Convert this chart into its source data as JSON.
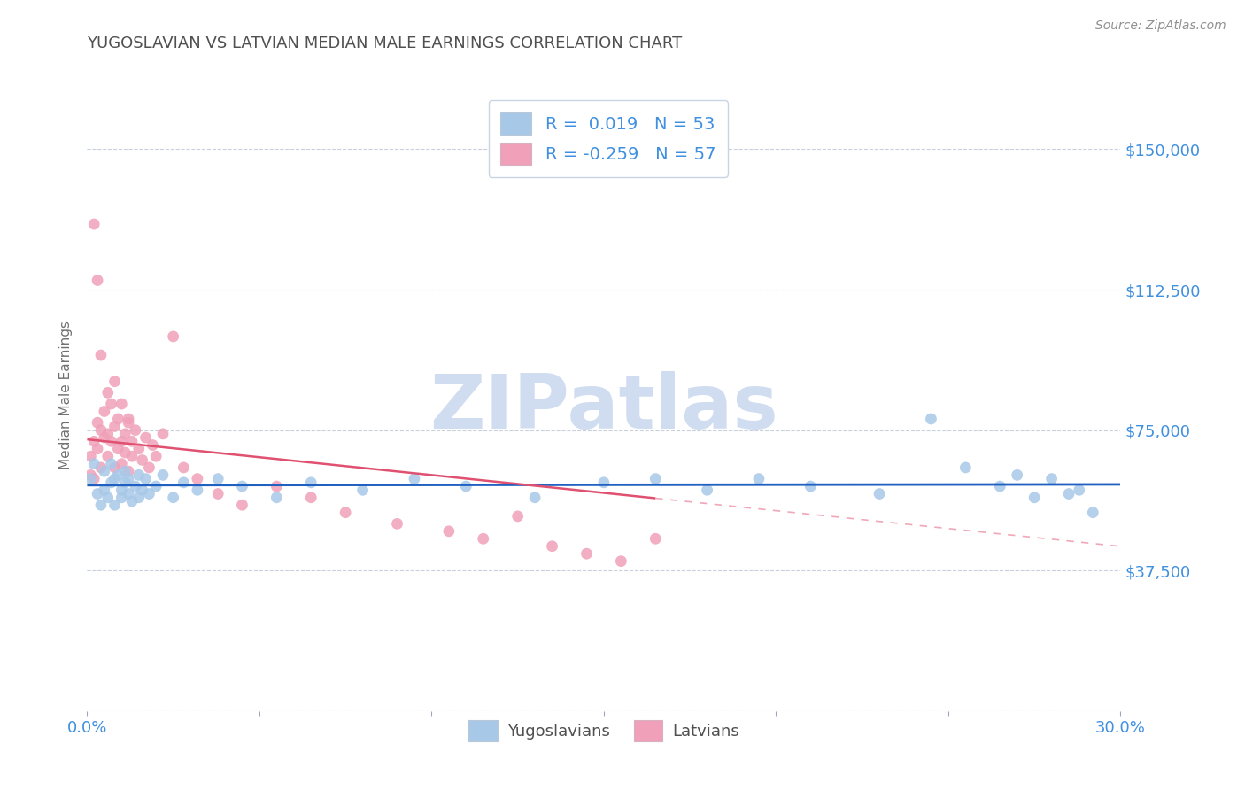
{
  "title": "YUGOSLAVIAN VS LATVIAN MEDIAN MALE EARNINGS CORRELATION CHART",
  "source": "Source: ZipAtlas.com",
  "ylabel": "Median Male Earnings",
  "xlim": [
    0.0,
    0.3
  ],
  "ylim": [
    0,
    168750
  ],
  "yticks": [
    0,
    37500,
    75000,
    112500,
    150000
  ],
  "ytick_labels": [
    "",
    "$37,500",
    "$75,000",
    "$112,500",
    "$150,000"
  ],
  "xticks": [
    0.0,
    0.05,
    0.1,
    0.15,
    0.2,
    0.25,
    0.3
  ],
  "yugo_R": 0.019,
  "yugo_N": 53,
  "latv_R": -0.259,
  "latv_N": 57,
  "yugo_color": "#a8c8e8",
  "latv_color": "#f0a0b8",
  "yugo_line_color": "#2060c0",
  "latv_line_color": "#e05070",
  "latv_dash_color": "#f0a8b8",
  "background_color": "#ffffff",
  "grid_color": "#c8d0dc",
  "title_color": "#505050",
  "axis_label_color": "#4090e0",
  "watermark_color": "#d0ddf0",
  "yugo_x": [
    0.001,
    0.002,
    0.003,
    0.004,
    0.005,
    0.005,
    0.006,
    0.007,
    0.007,
    0.008,
    0.008,
    0.009,
    0.01,
    0.01,
    0.011,
    0.011,
    0.012,
    0.012,
    0.013,
    0.014,
    0.015,
    0.015,
    0.016,
    0.017,
    0.018,
    0.02,
    0.022,
    0.025,
    0.028,
    0.032,
    0.038,
    0.045,
    0.055,
    0.065,
    0.08,
    0.095,
    0.11,
    0.13,
    0.15,
    0.165,
    0.18,
    0.195,
    0.21,
    0.23,
    0.245,
    0.255,
    0.265,
    0.27,
    0.275,
    0.28,
    0.285,
    0.288,
    0.292
  ],
  "yugo_y": [
    62000,
    66000,
    58000,
    55000,
    59000,
    64000,
    57000,
    61000,
    66000,
    62000,
    55000,
    63000,
    59000,
    57000,
    61000,
    64000,
    58000,
    62000,
    56000,
    60000,
    63000,
    57000,
    59000,
    62000,
    58000,
    60000,
    63000,
    57000,
    61000,
    59000,
    62000,
    60000,
    57000,
    61000,
    59000,
    62000,
    60000,
    57000,
    61000,
    62000,
    59000,
    62000,
    60000,
    58000,
    78000,
    65000,
    60000,
    63000,
    57000,
    62000,
    58000,
    59000,
    53000
  ],
  "latv_x": [
    0.001,
    0.001,
    0.002,
    0.002,
    0.003,
    0.003,
    0.004,
    0.004,
    0.005,
    0.005,
    0.006,
    0.006,
    0.007,
    0.007,
    0.008,
    0.008,
    0.009,
    0.009,
    0.01,
    0.01,
    0.011,
    0.011,
    0.012,
    0.012,
    0.013,
    0.013,
    0.014,
    0.015,
    0.016,
    0.017,
    0.018,
    0.019,
    0.02,
    0.022,
    0.025,
    0.028,
    0.032,
    0.038,
    0.045,
    0.055,
    0.065,
    0.075,
    0.09,
    0.105,
    0.115,
    0.125,
    0.135,
    0.145,
    0.155,
    0.165,
    0.002,
    0.003,
    0.004,
    0.006,
    0.008,
    0.01,
    0.012
  ],
  "latv_y": [
    63000,
    68000,
    62000,
    72000,
    70000,
    77000,
    75000,
    65000,
    73000,
    80000,
    68000,
    74000,
    82000,
    72000,
    76000,
    65000,
    70000,
    78000,
    72000,
    66000,
    74000,
    69000,
    77000,
    64000,
    72000,
    68000,
    75000,
    70000,
    67000,
    73000,
    65000,
    71000,
    68000,
    74000,
    100000,
    65000,
    62000,
    58000,
    55000,
    60000,
    57000,
    53000,
    50000,
    48000,
    46000,
    52000,
    44000,
    42000,
    40000,
    46000,
    130000,
    115000,
    95000,
    85000,
    88000,
    82000,
    78000
  ]
}
